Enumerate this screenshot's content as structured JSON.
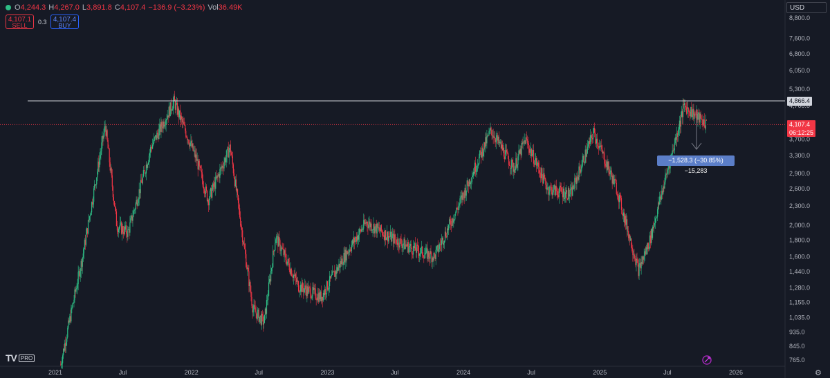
{
  "header": {
    "o_label": "O",
    "o_value": "4,244.3",
    "h_label": "H",
    "h_value": "4,267.0",
    "l_label": "L",
    "l_value": "3,891.8",
    "c_label": "C",
    "c_value": "4,107.4",
    "change": "−136.9 (−3.23%)",
    "vol_label": "Vol",
    "vol_value": "36.49K"
  },
  "trade": {
    "sell_price": "4,107.1",
    "sell_label": "SELL",
    "spread": "0.3",
    "buy_price": "4,107.4",
    "buy_label": "BUY"
  },
  "currency": "USD",
  "price_axis": {
    "labels": [
      "8,800.0",
      "7,600.0",
      "6,800.0",
      "6,050.0",
      "5,300.0",
      "4,700.0",
      "3,700.0",
      "3,300.0",
      "2,900.0",
      "2,600.0",
      "2,300.0",
      "2,000.0",
      "1,800.0",
      "1,600.0",
      "1,440.0",
      "1,280.0",
      "1,155.0",
      "1,035.0",
      "935.0",
      "845.0",
      "765.0"
    ],
    "horizontal_line_label": "4,866.4",
    "current_price_label": "4,107.4",
    "countdown": "06:12:25"
  },
  "time_axis": {
    "labels": [
      "2021",
      "Jul",
      "2022",
      "Jul",
      "2023",
      "Jul",
      "2024",
      "Jul",
      "2025",
      "Jul",
      "2026"
    ]
  },
  "measure_label": "−1,528.3 (−30.85%) −15,283",
  "logo": {
    "text": "TV",
    "badge": "PRO"
  },
  "colors": {
    "up": "#2ebd85",
    "down": "#f23645",
    "background": "#161a25",
    "measure": "#5b7ec8"
  },
  "chart_data": {
    "type": "candlestick",
    "scale": "log",
    "x_range": [
      "2020-12",
      "2026-01"
    ],
    "ylim": [
      765,
      8800
    ],
    "trendline_price": 4866.4,
    "current_price": 4107.4,
    "key_points": [
      {
        "date": "2021-01",
        "price": 740
      },
      {
        "date": "2021-03",
        "price": 1600
      },
      {
        "date": "2021-05",
        "price": 4100
      },
      {
        "date": "2021-06",
        "price": 2000
      },
      {
        "date": "2021-07",
        "price": 1900
      },
      {
        "date": "2021-09",
        "price": 3500
      },
      {
        "date": "2021-11",
        "price": 4850
      },
      {
        "date": "2022-01",
        "price": 3200
      },
      {
        "date": "2022-02",
        "price": 2400
      },
      {
        "date": "2022-04",
        "price": 3500
      },
      {
        "date": "2022-06",
        "price": 1100
      },
      {
        "date": "2022-07",
        "price": 1000
      },
      {
        "date": "2022-08",
        "price": 1850
      },
      {
        "date": "2022-10",
        "price": 1300
      },
      {
        "date": "2022-12",
        "price": 1200
      },
      {
        "date": "2023-02",
        "price": 1600
      },
      {
        "date": "2023-04",
        "price": 2050
      },
      {
        "date": "2023-06",
        "price": 1850
      },
      {
        "date": "2023-08",
        "price": 1700
      },
      {
        "date": "2023-10",
        "price": 1600
      },
      {
        "date": "2023-12",
        "price": 2250
      },
      {
        "date": "2024-03",
        "price": 3950
      },
      {
        "date": "2024-05",
        "price": 3000
      },
      {
        "date": "2024-06",
        "price": 3700
      },
      {
        "date": "2024-08",
        "price": 2600
      },
      {
        "date": "2024-10",
        "price": 2500
      },
      {
        "date": "2024-12",
        "price": 3900
      },
      {
        "date": "2025-02",
        "price": 2600
      },
      {
        "date": "2025-04",
        "price": 1450
      },
      {
        "date": "2025-05",
        "price": 1800
      },
      {
        "date": "2025-06",
        "price": 2500
      },
      {
        "date": "2025-08",
        "price": 4700
      },
      {
        "date": "2025-09",
        "price": 4400
      },
      {
        "date": "2025-10",
        "price": 4107
      }
    ]
  }
}
